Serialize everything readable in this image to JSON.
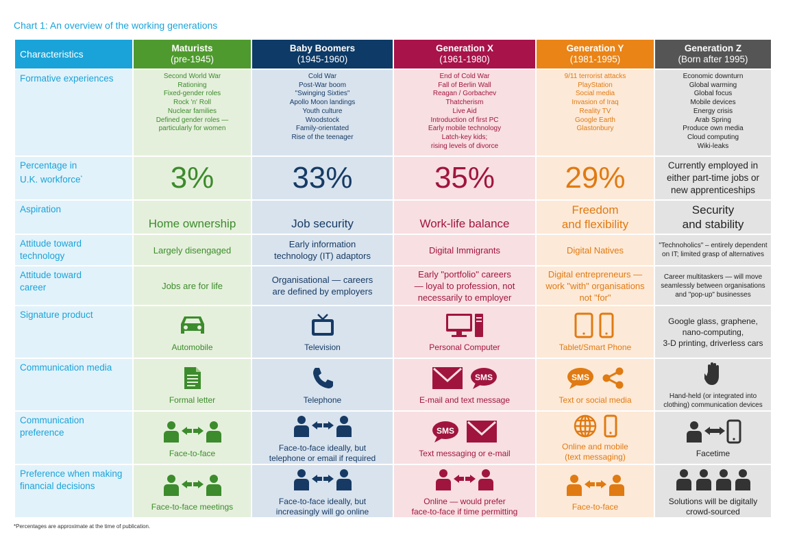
{
  "title": "Chart 1: An overview of the working generations",
  "footnote": "*Percentages are approximate at the time of publication.",
  "colors": {
    "maturists": "#4f9a2e",
    "boomers": "#0d3a66",
    "genx": "#a8134a",
    "geny": "#ea8417",
    "genz": "#555555",
    "label": "#1aa3d9"
  },
  "header": {
    "characteristics": "Characteristics",
    "maturists": {
      "name": "Maturists",
      "years": "(pre-1945)"
    },
    "boomers": {
      "name": "Baby Boomers",
      "years": "(1945-1960)"
    },
    "genx": {
      "name": "Generation X",
      "years": "(1961-1980)"
    },
    "geny": {
      "name": "Generation Y",
      "years": "(1981-1995)"
    },
    "genz": {
      "name": "Generation Z",
      "years": "(Born after 1995)"
    }
  },
  "rows": {
    "formative": {
      "label": "Formative experiences",
      "maturists": [
        "Second World War",
        "Rationing",
        "Fixed-gender roles",
        "Rock 'n' Roll",
        "Nuclear families",
        "Defined gender roles —",
        "particularly for women"
      ],
      "boomers": [
        "Cold War",
        "Post-War boom",
        "\"Swinging Sixties\"",
        "Apollo Moon landings",
        "Youth culture",
        "Woodstock",
        "Family-orientated",
        "Rise of the teenager"
      ],
      "genx": [
        "End of Cold War",
        "Fall of Berlin Wall",
        "Reagan / Gorbachev",
        "Thatcherism",
        "Live Aid",
        "Introduction of first PC",
        "Early mobile technology",
        "Latch-key kids;",
        "rising levels of divorce"
      ],
      "geny": [
        "9/11 terrorist attacks",
        "PlayStation",
        "Social media",
        "Invasion of Iraq",
        "Reality TV",
        "Google Earth",
        "Glastonbury"
      ],
      "genz": [
        "Economic downturn",
        "Global warming",
        "Global focus",
        "Mobile devices",
        "Energy crisis",
        "Arab Spring",
        "Produce own media",
        "Cloud computing",
        "Wiki-leaks"
      ]
    },
    "percentage": {
      "label_line1": "Percentage in",
      "label_line2": "U.K. workforce",
      "label_mark": "*",
      "maturists": "3%",
      "boomers": "33%",
      "genx": "35%",
      "geny": "29%",
      "genz": [
        "Currently employed in",
        "either part-time jobs or",
        "new apprenticeships"
      ]
    },
    "aspiration": {
      "label": "Aspiration",
      "maturists": "Home ownership",
      "boomers": "Job security",
      "genx": "Work-life balance",
      "geny": [
        "Freedom",
        "and flexibility"
      ],
      "genz": [
        "Security",
        "and stability"
      ]
    },
    "technology": {
      "label_line1": "Attitude toward",
      "label_line2": "technology",
      "maturists": "Largely disengaged",
      "boomers": [
        "Early information",
        "technology (IT) adaptors"
      ],
      "genx": "Digital Immigrants",
      "geny": "Digital Natives",
      "genz": [
        "\"Technoholics\" – entirely dependent",
        "on IT; limited grasp of alternatives"
      ]
    },
    "career": {
      "label_line1": "Attitude toward",
      "label_line2": "career",
      "maturists": "Jobs are for life",
      "boomers": [
        "Organisational — careers",
        "are defined by employers"
      ],
      "genx": [
        "Early \"portfolio\" careers",
        "— loyal to profession, not",
        "necessarily to employer"
      ],
      "geny": [
        "Digital entrepreneurs —",
        "work \"with\" organisations",
        "not \"for\""
      ],
      "genz": [
        "Career multitaskers — will move",
        "seamlessly between organisations",
        "and \"pop-up\" businesses"
      ]
    },
    "product": {
      "label": "Signature product",
      "maturists": {
        "caption": "Automobile",
        "icon": "car-icon"
      },
      "boomers": {
        "caption": "Television",
        "icon": "television-icon"
      },
      "genx": {
        "caption": "Personal Computer",
        "icon": "personal-computer-icon"
      },
      "geny": {
        "caption": "Tablet/Smart Phone",
        "icon": "tablet-phone-icon"
      },
      "genz": [
        "Google glass, graphene,",
        "nano-computing,",
        "3-D printing, driverless cars"
      ]
    },
    "media": {
      "label": "Communication media",
      "maturists": {
        "caption": "Formal letter",
        "icon": "letter-icon"
      },
      "boomers": {
        "caption": "Telephone",
        "icon": "telephone-icon"
      },
      "genx": {
        "caption": "E-mail and text message",
        "icon": "envelope-icon",
        "sms": "SMS"
      },
      "geny": {
        "caption": "Text or social media",
        "icon": "share-icon",
        "sms": "SMS"
      },
      "genz": {
        "caption": [
          "Hand-held (or integrated into",
          "clothing) communication devices"
        ],
        "icon": "hand-icon"
      }
    },
    "preference": {
      "label_line1": "Communication",
      "label_line2": "preference",
      "maturists": {
        "caption": "Face-to-face",
        "icon": "face-to-face-icon"
      },
      "boomers": {
        "caption": [
          "Face-to-face ideally, but",
          "telephone or email if required"
        ],
        "icon": "face-to-face-icon"
      },
      "genx": {
        "caption": "Text messaging or e-mail",
        "icon": "envelope-icon",
        "sms": "SMS"
      },
      "geny": {
        "caption": [
          "Online and mobile",
          "(text messaging)"
        ],
        "icon": "globe-icon"
      },
      "genz": {
        "caption": "Facetime",
        "icon": "facetime-icon"
      }
    },
    "financial": {
      "label_line1": "Preference when making",
      "label_line2": "financial decisions",
      "maturists": {
        "caption": "Face-to-face meetings",
        "icon": "face-to-face-icon"
      },
      "boomers": {
        "caption": [
          "Face-to-face ideally, but",
          "increasingly will go online"
        ],
        "icon": "face-to-face-icon"
      },
      "genx": {
        "caption": [
          "Online — would prefer",
          "face-to-face if time permitting"
        ],
        "icon": "face-to-face-icon"
      },
      "geny": {
        "caption": "Face-to-face",
        "icon": "face-to-face-icon"
      },
      "genz": {
        "caption": [
          "Solutions will be digitally",
          "crowd-sourced"
        ],
        "icon": "crowd-icon"
      }
    }
  }
}
